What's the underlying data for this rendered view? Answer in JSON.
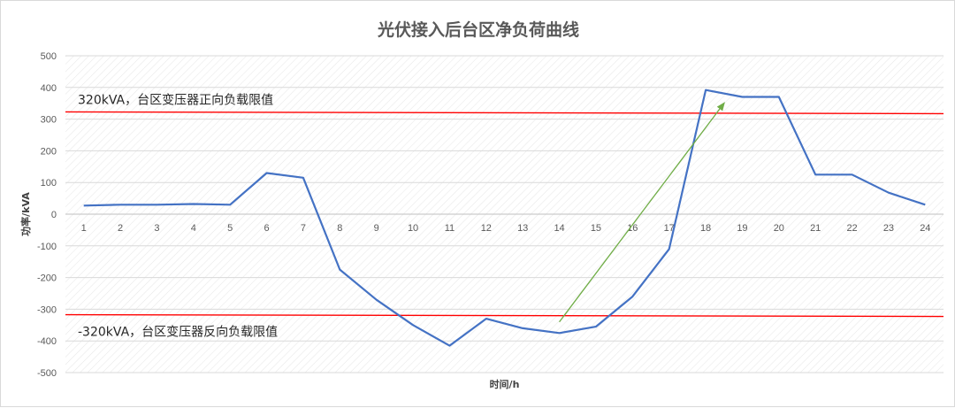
{
  "chart_data": {
    "type": "line",
    "title": "光伏接入后台区净负荷曲线",
    "xlabel": "时间/h",
    "ylabel": "功率/kVA",
    "ylim": [
      -500,
      500
    ],
    "yticks": [
      500,
      400,
      300,
      200,
      100,
      0,
      -100,
      -200,
      -300,
      -400,
      -500
    ],
    "categories": [
      "1",
      "2",
      "3",
      "4",
      "5",
      "6",
      "7",
      "8",
      "9",
      "10",
      "11",
      "12",
      "13",
      "14",
      "15",
      "16",
      "17",
      "18",
      "19",
      "20",
      "21",
      "22",
      "23",
      "24"
    ],
    "series": [
      {
        "values": [
          27,
          30,
          30,
          32,
          30,
          130,
          115,
          -175,
          -270,
          -350,
          -415,
          -330,
          -360,
          -375,
          -355,
          -260,
          -110,
          392,
          370,
          370,
          125,
          125,
          68,
          30
        ],
        "color": "#4472c4"
      }
    ],
    "reference_lines": [
      {
        "value": 320,
        "label": "320kVA，台区变压器正向负载限值",
        "color": "#ff0000"
      },
      {
        "value": -320,
        "label": "-320kVA，台区变压器反向负载限值",
        "color": "#ff0000"
      }
    ],
    "arrow": {
      "from": [
        14,
        -340
      ],
      "to": [
        18.5,
        350
      ],
      "color": "#70ad47"
    },
    "grid": true,
    "legend": "none"
  }
}
